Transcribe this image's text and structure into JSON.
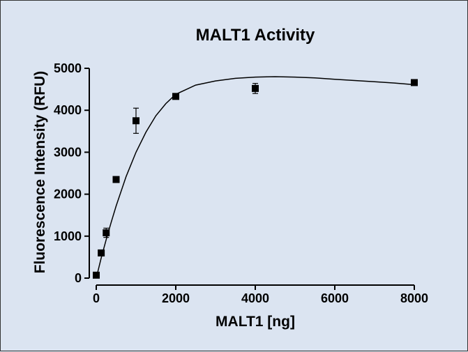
{
  "chart_data": {
    "type": "scatter",
    "title": "MALT1 Activity",
    "xlabel": "MALT1 [ng]",
    "ylabel": "Fluorescence Intensity (RFU)",
    "xlim": [
      0,
      8000
    ],
    "ylim": [
      0,
      5000
    ],
    "x_ticks": [
      "0",
      "2000",
      "4000",
      "6000",
      "8000"
    ],
    "y_ticks": [
      "0",
      "1000",
      "2000",
      "3000",
      "4000",
      "5000"
    ],
    "grid": false,
    "legend": "none",
    "marker": "square",
    "colors": {
      "background": "#dbe4f1",
      "series": "#000000"
    },
    "series": [
      {
        "x": [
          0,
          125,
          250,
          500,
          1000,
          2000,
          4000,
          8000
        ],
        "y": [
          70,
          600,
          1080,
          2350,
          3750,
          4330,
          4520,
          4660
        ],
        "error": [
          0,
          40,
          110,
          50,
          300,
          40,
          120,
          40
        ]
      }
    ],
    "fit_curve": {
      "x": [
        0,
        125,
        250,
        375,
        500,
        750,
        1000,
        1250,
        1500,
        1750,
        2000,
        2500,
        3000,
        3500,
        4000,
        4500,
        5000,
        5500,
        6000,
        6500,
        7000,
        7500,
        8000
      ],
      "y": [
        0,
        480,
        920,
        1330,
        1720,
        2420,
        3000,
        3480,
        3870,
        4160,
        4380,
        4600,
        4700,
        4760,
        4790,
        4800,
        4790,
        4770,
        4740,
        4710,
        4680,
        4650,
        4610
      ]
    }
  }
}
